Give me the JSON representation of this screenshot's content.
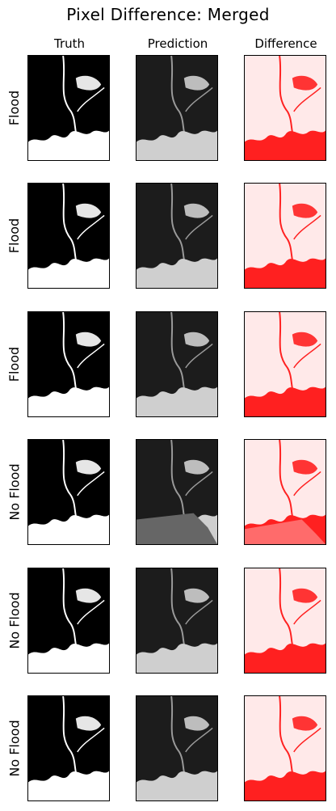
{
  "title": "Pixel Difference: Merged",
  "columns": [
    "Truth",
    "Prediction",
    "Difference"
  ],
  "rows": [
    {
      "label": "Flood"
    },
    {
      "label": "Flood"
    },
    {
      "label": "Flood"
    },
    {
      "label": "No Flood"
    },
    {
      "label": "No Flood"
    },
    {
      "label": "No Flood"
    }
  ],
  "colors": {
    "truth_land": "#000000",
    "truth_water": "#ffffff",
    "pred_bg": "#1c1c1c",
    "diff_bg": "#ffe9e9",
    "diff_accent": "#ff2020"
  }
}
